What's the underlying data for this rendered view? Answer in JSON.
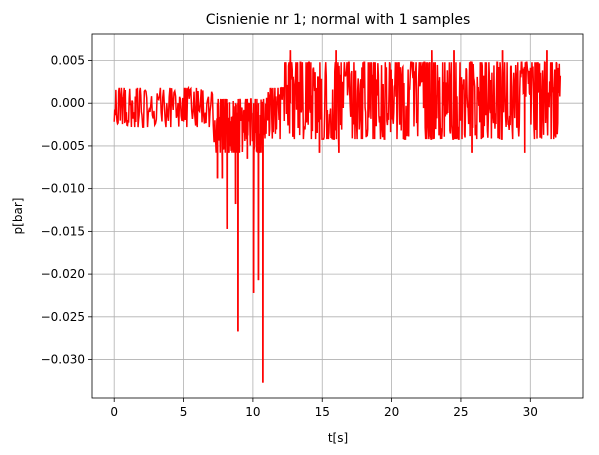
{
  "chart_data": {
    "type": "line",
    "title": "Cisnienie nr 1; normal with 1 samples",
    "xlabel": "t[s]",
    "ylabel": "p[bar]",
    "xlim": [
      -1.6,
      33.8
    ],
    "ylim": [
      -0.0345,
      0.0081
    ],
    "x_ticks": [
      0,
      5,
      10,
      15,
      20,
      25,
      30
    ],
    "x_tick_labels": [
      "0",
      "5",
      "10",
      "15",
      "20",
      "25",
      "30"
    ],
    "y_ticks": [
      0.005,
      0.0,
      -0.005,
      -0.01,
      -0.015,
      -0.02,
      -0.025,
      -0.03
    ],
    "y_tick_labels": [
      "0.005",
      "0.000",
      "−0.005",
      "−0.010",
      "−0.015",
      "−0.020",
      "−0.025",
      "−0.030"
    ],
    "grid": true,
    "series": [
      {
        "color": "#ff0000",
        "segments": [
          {
            "x0": 0.0,
            "x1": 2.0,
            "high": 0.0018,
            "low": -0.0028,
            "density": 50
          },
          {
            "x0": 2.0,
            "x1": 7.2,
            "high": 0.0018,
            "low": -0.0028,
            "density": 90
          },
          {
            "x0": 7.2,
            "x1": 10.8,
            "high": 0.0005,
            "low": -0.0058,
            "density": 120
          },
          {
            "x0": 10.8,
            "x1": 12.3,
            "high": 0.0018,
            "low": -0.0042,
            "density": 40
          },
          {
            "x0": 12.3,
            "x1": 23.8,
            "high": 0.0048,
            "low": -0.0042,
            "density": 300
          },
          {
            "x0": 23.8,
            "x1": 32.2,
            "high": 0.0048,
            "low": -0.0042,
            "density": 230
          }
        ],
        "spikes": [
          {
            "x": 7.45,
            "y": -0.0088
          },
          {
            "x": 7.8,
            "y": -0.0088
          },
          {
            "x": 8.15,
            "y": -0.0147
          },
          {
            "x": 8.75,
            "y": -0.0118
          },
          {
            "x": 8.92,
            "y": -0.0267
          },
          {
            "x": 9.6,
            "y": -0.0065
          },
          {
            "x": 10.05,
            "y": -0.0222
          },
          {
            "x": 10.4,
            "y": -0.0207
          },
          {
            "x": 10.72,
            "y": -0.0327
          },
          {
            "x": 12.7,
            "y": 0.0062
          },
          {
            "x": 14.8,
            "y": -0.0058
          },
          {
            "x": 16.0,
            "y": 0.0062
          },
          {
            "x": 16.2,
            "y": -0.0058
          },
          {
            "x": 22.9,
            "y": 0.0062
          },
          {
            "x": 24.5,
            "y": 0.0062
          },
          {
            "x": 25.8,
            "y": -0.0058
          },
          {
            "x": 28.0,
            "y": 0.0062
          },
          {
            "x": 29.6,
            "y": -0.0058
          },
          {
            "x": 31.2,
            "y": 0.0062
          }
        ]
      }
    ]
  }
}
